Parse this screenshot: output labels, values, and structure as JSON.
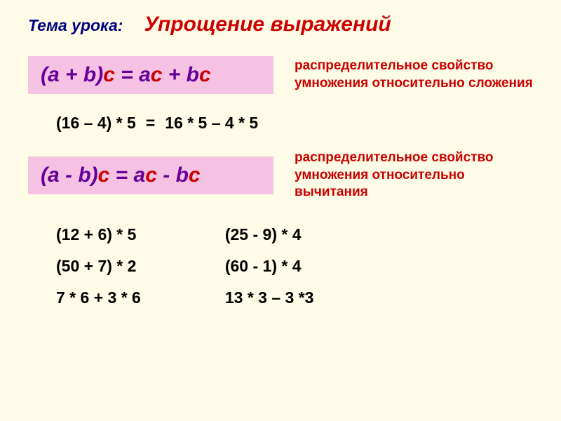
{
  "header": {
    "lesson_label": "Тема урока:",
    "topic_title": "Упрощение выражений"
  },
  "formula1": {
    "lhs_ab": "(a + b)",
    "lhs_c": "c",
    "eq": " = ",
    "rhs1_a": "a",
    "rhs1_c": "c",
    "plus": " + ",
    "rhs2_b": "b",
    "rhs2_c": "c",
    "desc": "распределительное свойство умножения относительно сложения"
  },
  "example_mid": {
    "left": "(16 – 4) * 5",
    "eq": "=",
    "right": "16 * 5 – 4 * 5"
  },
  "formula2": {
    "lhs_ab": "(a - b)",
    "lhs_c": "c",
    "eq": " = ",
    "rhs1_a": "a",
    "rhs1_c": "c",
    "minus": " - ",
    "rhs2_b": "b",
    "rhs2_c": "c",
    "desc": "распределительное свойство умножения относительно вычитания"
  },
  "exercises": {
    "col1": [
      "(12 + 6) * 5",
      "(50 + 7) * 2",
      "7 * 6 + 3 * 6"
    ],
    "col2": [
      "(25 - 9) * 4",
      "(60 - 1) * 4",
      "13 * 3 – 3 *3"
    ]
  },
  "colors": {
    "background": "#fefce6",
    "formula_bg": "#f5c2e4",
    "ab_color": "#660099",
    "c_color": "#cc0000",
    "desc_color": "#cc0000",
    "lesson_label_color": "#000080",
    "title_color": "#cc0000",
    "text_color": "#000000"
  },
  "fonts": {
    "title_size_pt": 22,
    "formula_size_pt": 22,
    "desc_size_pt": 14,
    "body_size_pt": 17
  }
}
